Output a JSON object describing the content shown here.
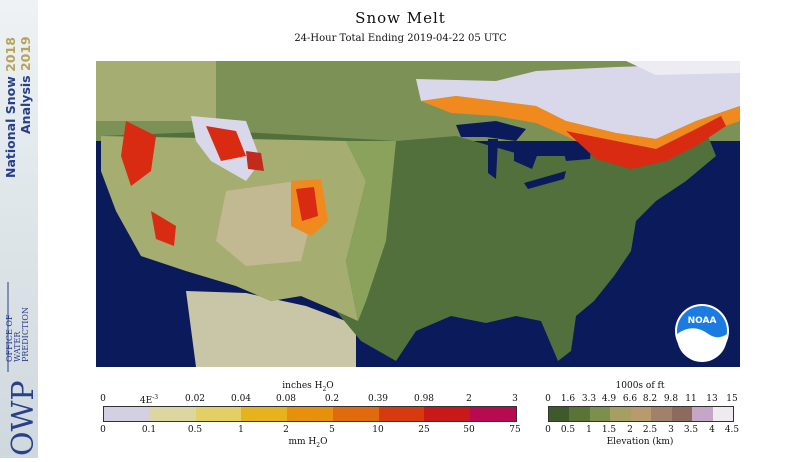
{
  "sidebar": {
    "product_line1": "National Snow",
    "product_line2": "Analysis",
    "year_top": "2018",
    "year_bottom": "2019",
    "office_lines": [
      "OFFICE OF",
      "WATER",
      "PREDICTION"
    ],
    "office_abbr": "OWP"
  },
  "title": "Snow Melt",
  "subtitle": "24-Hour Total Ending 2019-04-22 05 UTC",
  "map": {
    "logo_text": "NOAA",
    "colors": {
      "ocean": "#0b1a5a",
      "outside": "#c8c6a6",
      "lowland": "#4f6b3a",
      "plains": "#7e9a55",
      "highland": "#a4ad6e",
      "melt_high": "#d92a12",
      "melt_mid": "#f08a1e",
      "snow": "#d9d8ea"
    }
  },
  "melt_legend": {
    "top_title": "inches H",
    "top_title_sub": "2",
    "top_title_end": "O",
    "top_ticks": [
      "0",
      "4E",
      "0.02",
      "0.04",
      "0.08",
      "0.2",
      "0.39",
      "0.98",
      "2",
      "3"
    ],
    "top_tick_exp": "-3",
    "bottom_ticks": [
      "0",
      "0.1",
      "0.5",
      "1",
      "2",
      "5",
      "10",
      "25",
      "50",
      "75"
    ],
    "bottom_title": "mm H",
    "bottom_title_sub": "2",
    "bottom_title_end": "O",
    "colors": [
      "#d2d0e2",
      "#dcd7a0",
      "#e2d064",
      "#e6b21e",
      "#e6900c",
      "#e06a0c",
      "#d83a10",
      "#c81818",
      "#b80a4e"
    ]
  },
  "elev_legend": {
    "top_title": "1000s of ft",
    "top_ticks": [
      "0",
      "1.6",
      "3.3",
      "4.9",
      "6.6",
      "8.2",
      "9.8",
      "11",
      "13",
      "15"
    ],
    "bottom_ticks": [
      "0",
      "0.5",
      "1",
      "1.5",
      "2",
      "2.5",
      "3",
      "3.5",
      "4",
      "4.5"
    ],
    "bottom_title": "Elevation (km)",
    "colors": [
      "#3e5a2a",
      "#5a7438",
      "#7c8f4c",
      "#a59f64",
      "#b79b6c",
      "#a1816a",
      "#8c6a5c",
      "#c6a6c6",
      "#efeaef"
    ]
  }
}
